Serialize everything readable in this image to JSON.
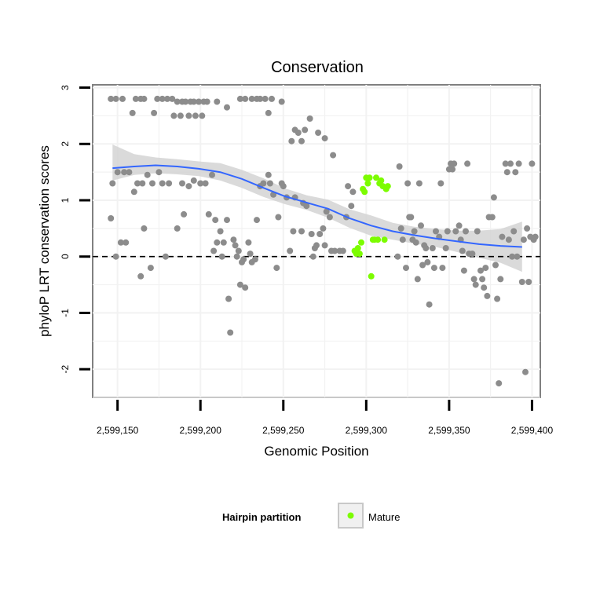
{
  "chart_data": {
    "type": "scatter",
    "title": "Conservation",
    "xlabel": "Genomic Position",
    "ylabel": "phyloP LRT conservation scores",
    "xlim": [
      2599135,
      2599405
    ],
    "ylim": [
      -2.5,
      3.05
    ],
    "x_ticks": [
      2599150,
      2599200,
      2599250,
      2599300,
      2599350,
      2599400
    ],
    "x_tick_labels": [
      "2,599,150",
      "2,599,200",
      "2,599,250",
      "2,599,300",
      "2,599,350",
      "2,599,400"
    ],
    "y_ticks": [
      -2,
      -1,
      0,
      1,
      2,
      3
    ],
    "y_tick_labels": [
      "-2",
      "-1",
      "0",
      "1",
      "2",
      "3"
    ],
    "grid": true,
    "reference_line": {
      "y": 0,
      "style": "dashed"
    },
    "colors": {
      "other": "#8c8c8c",
      "mature": "#7cfc00",
      "smooth": "#3366ff",
      "band": "#d4d4d4"
    },
    "series": [
      {
        "name": "Other",
        "legend": false,
        "points": [
          [
            2599146,
            2.8
          ],
          [
            2599149,
            2.8
          ],
          [
            2599153,
            2.8
          ],
          [
            2599159,
            2.55
          ],
          [
            2599161,
            2.8
          ],
          [
            2599164,
            2.8
          ],
          [
            2599166,
            2.8
          ],
          [
            2599172,
            2.55
          ],
          [
            2599174,
            2.8
          ],
          [
            2599177,
            2.8
          ],
          [
            2599180,
            2.8
          ],
          [
            2599183,
            2.8
          ],
          [
            2599184,
            2.5
          ],
          [
            2599186,
            2.75
          ],
          [
            2599188,
            2.5
          ],
          [
            2599189,
            2.75
          ],
          [
            2599191,
            2.75
          ],
          [
            2599193,
            2.5
          ],
          [
            2599194,
            2.75
          ],
          [
            2599196,
            2.75
          ],
          [
            2599197,
            2.5
          ],
          [
            2599199,
            2.75
          ],
          [
            2599201,
            2.5
          ],
          [
            2599202,
            2.75
          ],
          [
            2599204,
            2.75
          ],
          [
            2599210,
            2.75
          ],
          [
            2599216,
            2.65
          ],
          [
            2599146,
            0.68
          ],
          [
            2599147,
            1.3
          ],
          [
            2599149,
            0
          ],
          [
            2599150,
            1.5
          ],
          [
            2599152,
            0.25
          ],
          [
            2599154,
            1.5
          ],
          [
            2599155,
            0.25
          ],
          [
            2599157,
            1.5
          ],
          [
            2599160,
            1.15
          ],
          [
            2599162,
            1.3
          ],
          [
            2599164,
            -0.35
          ],
          [
            2599165,
            1.3
          ],
          [
            2599166,
            0.5
          ],
          [
            2599168,
            1.45
          ],
          [
            2599170,
            -0.2
          ],
          [
            2599171,
            1.3
          ],
          [
            2599175,
            1.5
          ],
          [
            2599177,
            1.3
          ],
          [
            2599179,
            0
          ],
          [
            2599181,
            1.3
          ],
          [
            2599186,
            0.5
          ],
          [
            2599189,
            1.3
          ],
          [
            2599190,
            0.75
          ],
          [
            2599193,
            1.25
          ],
          [
            2599196,
            1.35
          ],
          [
            2599200,
            1.3
          ],
          [
            2599203,
            1.3
          ],
          [
            2599205,
            0.75
          ],
          [
            2599207,
            1.45
          ],
          [
            2599208,
            0.1
          ],
          [
            2599209,
            0.65
          ],
          [
            2599210,
            0.25
          ],
          [
            2599212,
            0.45
          ],
          [
            2599213,
            0
          ],
          [
            2599214,
            0.25
          ],
          [
            2599216,
            0.65
          ],
          [
            2599217,
            -0.75
          ],
          [
            2599218,
            -1.35
          ],
          [
            2599220,
            0.3
          ],
          [
            2599221,
            0.2
          ],
          [
            2599222,
            0
          ],
          [
            2599223,
            0.1
          ],
          [
            2599224,
            -0.5
          ],
          [
            2599225,
            -0.1
          ],
          [
            2599226,
            -0.05
          ],
          [
            2599227,
            -0.55
          ],
          [
            2599229,
            0.25
          ],
          [
            2599230,
            0.05
          ],
          [
            2599231,
            -0.1
          ],
          [
            2599233,
            -0.05
          ],
          [
            2599234,
            0.65
          ],
          [
            2599236,
            1.25
          ],
          [
            2599238,
            1.3
          ],
          [
            2599241,
            1.45
          ],
          [
            2599242,
            1.3
          ],
          [
            2599244,
            1.1
          ],
          [
            2599246,
            -0.2
          ],
          [
            2599247,
            0.7
          ],
          [
            2599249,
            1.3
          ],
          [
            2599250,
            1.25
          ],
          [
            2599252,
            1.05
          ],
          [
            2599254,
            0.1
          ],
          [
            2599256,
            0.45
          ],
          [
            2599257,
            1.05
          ],
          [
            2599261,
            0.45
          ],
          [
            2599262,
            0.95
          ],
          [
            2599264,
            0.9
          ],
          [
            2599267,
            0.4
          ],
          [
            2599268,
            0
          ],
          [
            2599269,
            0.15
          ],
          [
            2599270,
            0.2
          ],
          [
            2599272,
            0.4
          ],
          [
            2599274,
            0.5
          ],
          [
            2599275,
            0.2
          ],
          [
            2599276,
            0.8
          ],
          [
            2599278,
            0.7
          ],
          [
            2599279,
            0.1
          ],
          [
            2599281,
            0.1
          ],
          [
            2599284,
            0.1
          ],
          [
            2599286,
            0.1
          ],
          [
            2599288,
            0.7
          ],
          [
            2599224,
            2.8
          ],
          [
            2599227,
            2.8
          ],
          [
            2599231,
            2.8
          ],
          [
            2599234,
            2.8
          ],
          [
            2599236,
            2.8
          ],
          [
            2599239,
            2.8
          ],
          [
            2599243,
            2.8
          ],
          [
            2599241,
            2.55
          ],
          [
            2599249,
            2.75
          ],
          [
            2599255,
            2.05
          ],
          [
            2599257,
            2.25
          ],
          [
            2599259,
            2.2
          ],
          [
            2599261,
            2.05
          ],
          [
            2599263,
            2.25
          ],
          [
            2599266,
            2.45
          ],
          [
            2599271,
            2.2
          ],
          [
            2599275,
            2.1
          ],
          [
            2599280,
            1.8
          ],
          [
            2599289,
            1.25
          ],
          [
            2599291,
            0.9
          ],
          [
            2599292,
            1.15
          ],
          [
            2599319,
            0
          ],
          [
            2599320,
            1.6
          ],
          [
            2599321,
            0.5
          ],
          [
            2599322,
            0.3
          ],
          [
            2599324,
            -0.2
          ],
          [
            2599325,
            1.3
          ],
          [
            2599326,
            0.7
          ],
          [
            2599327,
            0.7
          ],
          [
            2599328,
            0.3
          ],
          [
            2599329,
            0.45
          ],
          [
            2599330,
            0.25
          ],
          [
            2599331,
            -0.4
          ],
          [
            2599332,
            1.3
          ],
          [
            2599333,
            0.55
          ],
          [
            2599334,
            -0.15
          ],
          [
            2599335,
            0.2
          ],
          [
            2599336,
            0.15
          ],
          [
            2599337,
            -0.1
          ],
          [
            2599338,
            -0.85
          ],
          [
            2599340,
            0.15
          ],
          [
            2599341,
            -0.2
          ],
          [
            2599342,
            0.45
          ],
          [
            2599344,
            0.35
          ],
          [
            2599345,
            1.3
          ],
          [
            2599346,
            -0.2
          ],
          [
            2599348,
            0.15
          ],
          [
            2599349,
            0.45
          ],
          [
            2599350,
            1.55
          ],
          [
            2599351,
            1.65
          ],
          [
            2599352,
            1.55
          ],
          [
            2599353,
            1.65
          ],
          [
            2599354,
            0.45
          ],
          [
            2599356,
            0.55
          ],
          [
            2599357,
            0.3
          ],
          [
            2599358,
            0.1
          ],
          [
            2599359,
            -0.25
          ],
          [
            2599360,
            0.45
          ],
          [
            2599361,
            1.65
          ],
          [
            2599362,
            0.05
          ],
          [
            2599364,
            0.05
          ],
          [
            2599365,
            -0.4
          ],
          [
            2599366,
            -0.5
          ],
          [
            2599367,
            0.45
          ],
          [
            2599369,
            -0.25
          ],
          [
            2599370,
            -0.4
          ],
          [
            2599371,
            -0.55
          ],
          [
            2599372,
            -0.2
          ],
          [
            2599373,
            -0.7
          ],
          [
            2599374,
            0.7
          ],
          [
            2599376,
            0.7
          ],
          [
            2599377,
            1.05
          ],
          [
            2599378,
            -0.15
          ],
          [
            2599379,
            -0.75
          ],
          [
            2599380,
            -2.25
          ],
          [
            2599381,
            -0.4
          ],
          [
            2599382,
            0.35
          ],
          [
            2599384,
            1.65
          ],
          [
            2599385,
            1.5
          ],
          [
            2599386,
            0.3
          ],
          [
            2599387,
            1.65
          ],
          [
            2599388,
            0
          ],
          [
            2599389,
            0.45
          ],
          [
            2599390,
            1.5
          ],
          [
            2599391,
            0
          ],
          [
            2599392,
            1.65
          ],
          [
            2599394,
            -0.45
          ],
          [
            2599395,
            0.3
          ],
          [
            2599396,
            -2.05
          ],
          [
            2599397,
            0.5
          ],
          [
            2599398,
            -0.45
          ],
          [
            2599399,
            0.35
          ],
          [
            2599400,
            1.65
          ],
          [
            2599401,
            0.3
          ],
          [
            2599402,
            0.35
          ]
        ]
      },
      {
        "name": "Mature",
        "legend": true,
        "points": [
          [
            2599293,
            0.1
          ],
          [
            2599294,
            0.05
          ],
          [
            2599295,
            0.15
          ],
          [
            2599296,
            0.05
          ],
          [
            2599297,
            0.25
          ],
          [
            2599298,
            1.2
          ],
          [
            2599299,
            1.15
          ],
          [
            2599300,
            1.4
          ],
          [
            2599301,
            1.3
          ],
          [
            2599302,
            1.4
          ],
          [
            2599303,
            -0.35
          ],
          [
            2599304,
            0.3
          ],
          [
            2599305,
            0.3
          ],
          [
            2599306,
            1.4
          ],
          [
            2599307,
            0.3
          ],
          [
            2599308,
            1.3
          ],
          [
            2599309,
            1.35
          ],
          [
            2599310,
            1.25
          ],
          [
            2599311,
            0.3
          ],
          [
            2599312,
            1.2
          ],
          [
            2599313,
            1.25
          ]
        ]
      }
    ],
    "smooth": {
      "method": "loess",
      "x": [
        2599147,
        2599160,
        2599173,
        2599186,
        2599199,
        2599212,
        2599225,
        2599238,
        2599251,
        2599264,
        2599277,
        2599290,
        2599303,
        2599316,
        2599329,
        2599342,
        2599355,
        2599368,
        2599381,
        2599394
      ],
      "y": [
        1.57,
        1.6,
        1.62,
        1.6,
        1.56,
        1.5,
        1.38,
        1.22,
        1.07,
        0.96,
        0.85,
        0.68,
        0.55,
        0.45,
        0.38,
        0.32,
        0.27,
        0.22,
        0.19,
        0.17
      ],
      "lower": [
        1.35,
        1.45,
        1.48,
        1.46,
        1.43,
        1.35,
        1.22,
        1.06,
        0.93,
        0.83,
        0.69,
        0.51,
        0.37,
        0.3,
        0.23,
        0.17,
        0.08,
        -0.02,
        -0.11,
        -0.27
      ],
      "upper": [
        1.99,
        1.82,
        1.76,
        1.73,
        1.69,
        1.66,
        1.54,
        1.39,
        1.21,
        1.09,
        1.01,
        0.84,
        0.73,
        0.6,
        0.53,
        0.49,
        0.46,
        0.46,
        0.49,
        0.62
      ]
    },
    "legend": {
      "title": "Hairpin partition",
      "entries": [
        "Mature"
      ],
      "placement": "bottom"
    }
  }
}
